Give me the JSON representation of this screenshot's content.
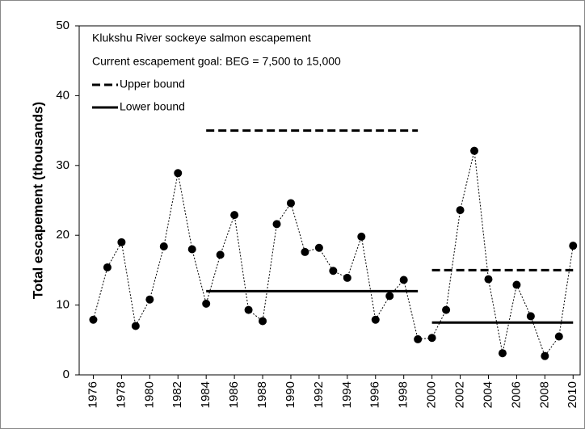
{
  "chart_data": {
    "type": "line",
    "y_label": "Total escapement (thousands)",
    "annotations": [
      "Klukshu River sockeye salmon escapement",
      "Current escapement goal: BEG = 7,500 to 15,000"
    ],
    "x": [
      1976,
      1977,
      1978,
      1979,
      1980,
      1981,
      1982,
      1983,
      1984,
      1985,
      1986,
      1987,
      1988,
      1989,
      1990,
      1991,
      1992,
      1993,
      1994,
      1995,
      1996,
      1997,
      1998,
      1999,
      2000,
      2001,
      2002,
      2003,
      2004,
      2005,
      2006,
      2007,
      2008,
      2009,
      2010
    ],
    "series": [
      {
        "name": "Escapement",
        "color": "#000000",
        "values": [
          7.9,
          15.4,
          19.0,
          7.0,
          10.8,
          18.4,
          28.9,
          18.0,
          10.2,
          17.2,
          22.9,
          9.3,
          7.7,
          21.6,
          24.6,
          17.6,
          18.2,
          14.9,
          13.9,
          19.8,
          7.9,
          11.3,
          13.6,
          5.1,
          5.3,
          9.3,
          23.6,
          32.1,
          13.7,
          3.1,
          12.9,
          8.4,
          2.7,
          5.5,
          18.5
        ]
      }
    ],
    "reference_lines": [
      {
        "name": "Upper bound",
        "style": "dashed",
        "segments": [
          {
            "x": [
              1984,
              1999
            ],
            "y": 35
          },
          {
            "x": [
              2000,
              2010
            ],
            "y": 15
          }
        ]
      },
      {
        "name": "Lower bound",
        "style": "solid",
        "segments": [
          {
            "x": [
              1984,
              1999
            ],
            "y": 12
          },
          {
            "x": [
              2000,
              2010
            ],
            "y": 7.5
          }
        ]
      }
    ],
    "xlim": [
      1975,
      2010.5
    ],
    "xticks": [
      1976,
      1978,
      1980,
      1982,
      1984,
      1986,
      1988,
      1990,
      1992,
      1994,
      1996,
      1998,
      2000,
      2002,
      2004,
      2006,
      2008,
      2010
    ],
    "ylim": [
      0,
      50
    ],
    "yticks": [
      0,
      10,
      20,
      30,
      40,
      50
    ],
    "grid": false
  }
}
